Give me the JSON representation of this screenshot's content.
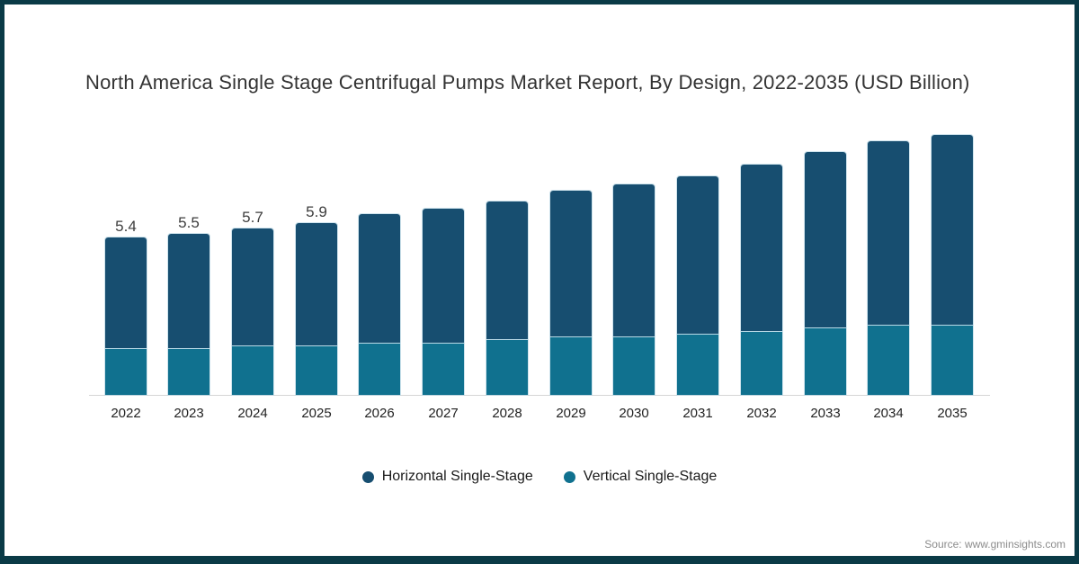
{
  "frame": {
    "border_color": "#0a3a46",
    "background": "#ffffff"
  },
  "chart_data": {
    "type": "bar",
    "stacked": true,
    "title": "North America Single Stage Centrifugal Pumps Market Report, By Design, 2022-2035 (USD Billion)",
    "xlabel": "",
    "ylabel": "",
    "ylim": [
      0,
      9.6
    ],
    "grid": false,
    "legend_position": "bottom",
    "axis_line_color": "#d6d6d6",
    "categories": [
      "2022",
      "2023",
      "2024",
      "2025",
      "2026",
      "2027",
      "2028",
      "2029",
      "2030",
      "2031",
      "2032",
      "2033",
      "2034",
      "2035"
    ],
    "series": [
      {
        "name": "Horizontal Single-Stage",
        "color": "#174e70",
        "values": [
          3.8,
          3.9,
          4.0,
          4.2,
          4.4,
          4.6,
          4.7,
          5.0,
          5.2,
          5.4,
          5.7,
          6.0,
          6.3,
          6.5
        ]
      },
      {
        "name": "Vertical Single-Stage",
        "color": "#10718f",
        "values": [
          1.6,
          1.6,
          1.7,
          1.7,
          1.8,
          1.8,
          1.9,
          2.0,
          2.0,
          2.1,
          2.2,
          2.3,
          2.4,
          2.4
        ]
      }
    ],
    "totals": [
      5.4,
      5.5,
      5.7,
      5.9,
      6.2,
      6.4,
      6.6,
      7.0,
      7.2,
      7.5,
      7.9,
      8.3,
      8.7,
      8.9
    ],
    "shown_total_labels": [
      "5.4",
      "5.5",
      "5.7",
      "5.9"
    ]
  },
  "footer": {
    "source": "Source: www.gminsights.com"
  }
}
